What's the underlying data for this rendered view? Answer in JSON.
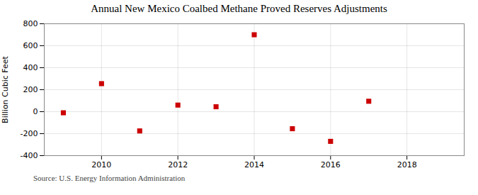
{
  "chart_data": {
    "type": "scatter",
    "title": "Annual New Mexico Coalbed Methane Proved Reserves Adjustments",
    "ylabel": "Billion Cubic Feet",
    "annotations": [
      "Source: U.S. Energy Information Administration"
    ],
    "x": [
      2009,
      2010,
      2011,
      2012,
      2013,
      2014,
      2015,
      2016,
      2017
    ],
    "values": [
      -10,
      255,
      -175,
      60,
      45,
      700,
      -155,
      -270,
      95
    ],
    "color": "#cc0000",
    "marker": "square",
    "xlim": [
      2008.5,
      2019.5
    ],
    "xticks": [
      2010,
      2012,
      2014,
      2016,
      2018
    ],
    "ylim": [
      -400,
      800
    ],
    "yticks": [
      -400,
      -200,
      0,
      200,
      400,
      600,
      800
    ],
    "grid": true
  }
}
